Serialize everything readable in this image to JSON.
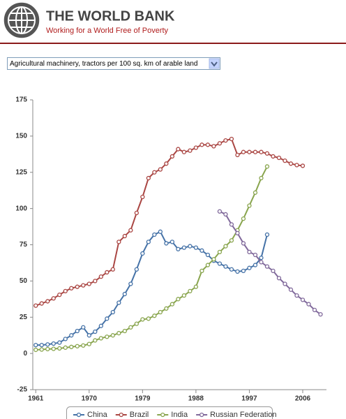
{
  "header": {
    "title": "THE WORLD BANK",
    "subtitle": "Working for a World Free of Poverty"
  },
  "selector": {
    "selected": "Agricultural machinery, tractors per 100 sq. km of arable land"
  },
  "chart_data": {
    "type": "line",
    "x": [
      1961,
      1962,
      1963,
      1964,
      1965,
      1966,
      1967,
      1968,
      1969,
      1970,
      1971,
      1972,
      1973,
      1974,
      1975,
      1976,
      1977,
      1978,
      1979,
      1980,
      1981,
      1982,
      1983,
      1984,
      1985,
      1986,
      1987,
      1988,
      1989,
      1990,
      1991,
      1992,
      1993,
      1994,
      1995,
      1996,
      1997,
      1998,
      1999,
      2000,
      2001,
      2002,
      2003,
      2004,
      2005,
      2006,
      2007,
      2008,
      2009
    ],
    "series": [
      {
        "name": "China",
        "color": "#4572a7",
        "values": [
          5.8,
          5.8,
          6.2,
          6.8,
          7.5,
          10,
          12.5,
          15.5,
          18,
          12.5,
          15,
          19,
          24,
          28.5,
          35,
          41,
          48,
          58,
          69,
          77,
          82,
          84,
          76,
          77,
          72,
          73,
          74,
          73,
          71,
          68,
          64,
          62,
          60,
          58,
          56.5,
          57,
          59,
          61,
          66,
          82,
          null,
          null,
          null,
          null,
          null,
          null,
          null,
          null,
          null
        ]
      },
      {
        "name": "Brazil",
        "color": "#aa4643",
        "values": [
          33,
          34.5,
          36,
          38,
          40.5,
          43,
          45,
          46,
          47,
          48,
          50,
          53,
          56,
          58,
          77,
          81,
          85,
          97,
          108,
          121,
          125,
          127,
          131,
          136,
          141,
          139,
          140,
          142,
          144,
          144,
          143,
          145,
          147,
          148,
          137,
          139,
          139,
          139,
          139,
          138,
          136,
          135,
          133,
          131,
          130,
          129.5,
          null,
          null,
          null
        ]
      },
      {
        "name": "India",
        "color": "#89a54e",
        "values": [
          2.5,
          2.7,
          3,
          3.2,
          3.5,
          4,
          4.5,
          5,
          5.5,
          6.5,
          9,
          10.5,
          11.5,
          12.5,
          14,
          15.5,
          18,
          20.5,
          23.5,
          24,
          26,
          28.5,
          31,
          34,
          37.5,
          40,
          43,
          46,
          57,
          61,
          65,
          70,
          74,
          78,
          85,
          93,
          102,
          111,
          121,
          129,
          null,
          null,
          null,
          null,
          null,
          null,
          null,
          null,
          null
        ]
      },
      {
        "name": "Russian Federation",
        "color": "#80699b",
        "values": [
          null,
          null,
          null,
          null,
          null,
          null,
          null,
          null,
          null,
          null,
          null,
          null,
          null,
          null,
          null,
          null,
          null,
          null,
          null,
          null,
          null,
          null,
          null,
          null,
          null,
          null,
          null,
          null,
          null,
          null,
          null,
          98,
          96,
          89,
          83,
          76,
          70,
          68,
          63,
          60,
          57,
          52,
          48,
          44,
          40,
          37,
          34,
          30,
          27
        ]
      }
    ],
    "xlim": [
      1960.5,
      2010
    ],
    "xticks": [
      1961,
      1970,
      1979,
      1988,
      1997,
      2006
    ],
    "ylim": [
      -25,
      175
    ],
    "yticks": [
      -25,
      0,
      25,
      50,
      75,
      100,
      125,
      150,
      175
    ],
    "legend": "bottom"
  }
}
